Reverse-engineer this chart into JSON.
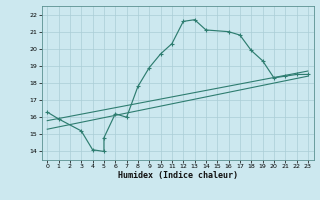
{
  "title": "",
  "xlabel": "Humidex (Indice chaleur)",
  "ylabel": "",
  "bg_color": "#cce8ef",
  "line_color": "#2e7d70",
  "grid_color": "#aacdd6",
  "xlim": [
    -0.5,
    23.5
  ],
  "ylim": [
    13.5,
    22.5
  ],
  "xticks": [
    0,
    1,
    2,
    3,
    4,
    5,
    6,
    7,
    8,
    9,
    10,
    11,
    12,
    13,
    14,
    15,
    16,
    17,
    18,
    19,
    20,
    21,
    22,
    23
  ],
  "yticks": [
    14,
    15,
    16,
    17,
    18,
    19,
    20,
    21,
    22
  ],
  "line1_x": [
    0,
    1,
    3,
    4,
    5,
    5,
    6,
    7,
    8,
    9,
    10,
    11,
    12,
    13,
    14,
    16,
    17,
    18,
    19,
    20,
    21,
    22,
    23
  ],
  "line1_y": [
    16.3,
    15.9,
    15.2,
    14.1,
    14.0,
    14.8,
    16.2,
    16.0,
    17.8,
    18.9,
    19.7,
    20.3,
    21.6,
    21.7,
    21.1,
    21.0,
    20.8,
    19.9,
    19.3,
    18.3,
    18.4,
    18.5,
    18.5
  ],
  "line2_x": [
    0,
    23
  ],
  "line2_y": [
    15.8,
    18.7
  ],
  "line3_x": [
    0,
    23
  ],
  "line3_y": [
    15.3,
    18.4
  ],
  "ytick_labels": [
    "14",
    "15",
    "16",
    "17",
    "18",
    "19",
    "20",
    "21",
    "22"
  ],
  "xtick_labels": [
    "0",
    "1",
    "2",
    "3",
    "4",
    "5",
    "6",
    "7",
    "8",
    "9",
    "10",
    "11",
    "12",
    "13",
    "14",
    "15",
    "16",
    "17",
    "18",
    "19",
    "20",
    "21",
    "22",
    "23"
  ]
}
